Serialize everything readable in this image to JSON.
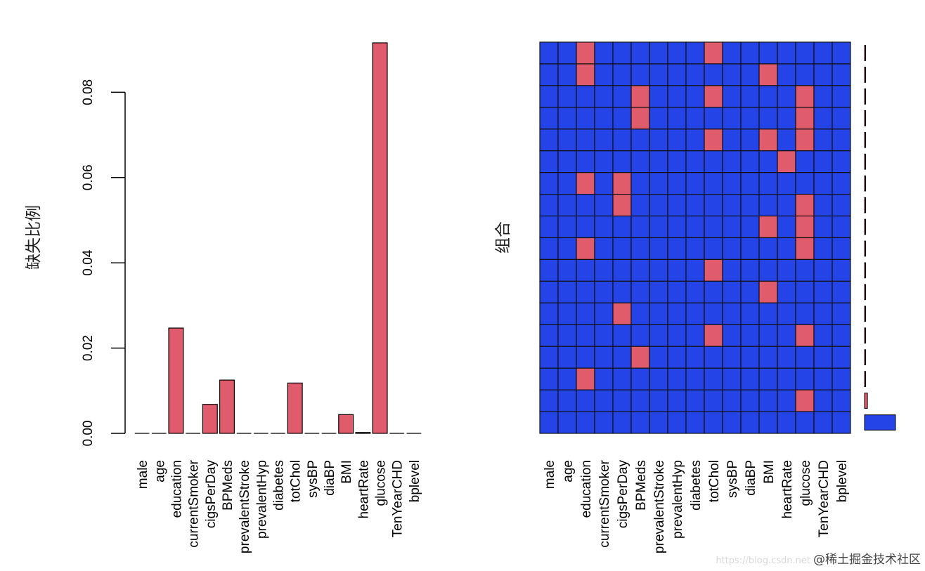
{
  "chart_data": [
    {
      "type": "bar",
      "ylabel": "缺失比例",
      "xlabel": "",
      "categories": [
        "male",
        "age",
        "education",
        "currentSmoker",
        "cigsPerDay",
        "BPMeds",
        "prevalentStroke",
        "prevalentHyp",
        "diabetes",
        "totChol",
        "sysBP",
        "diaBP",
        "BMI",
        "heartRate",
        "glucose",
        "TenYearCHD",
        "bplevel"
      ],
      "values": [
        0,
        0,
        0.0247,
        0,
        0.0068,
        0.0125,
        0,
        0,
        0,
        0.0118,
        0,
        0,
        0.0044,
        0.0002,
        0.0916,
        0,
        0
      ],
      "yticks": [
        "0.00",
        "0.02",
        "0.04",
        "0.06",
        "0.08"
      ],
      "ylim": [
        0,
        0.0916
      ],
      "bar_color": "#e05b6b",
      "legend": "none",
      "grid": false
    },
    {
      "type": "heatmap",
      "ylabel": "组合",
      "columns": [
        "male",
        "age",
        "education",
        "currentSmoker",
        "cigsPerDay",
        "BPMeds",
        "prevalentStroke",
        "prevalentHyp",
        "diabetes",
        "totChol",
        "sysBP",
        "diaBP",
        "BMI",
        "heartRate",
        "glucose",
        "TenYearCHD",
        "bplevel"
      ],
      "missing_pattern_rows": [
        [
          0,
          0,
          1,
          0,
          0,
          0,
          0,
          0,
          0,
          1,
          0,
          0,
          0,
          0,
          0,
          0,
          0
        ],
        [
          0,
          0,
          1,
          0,
          0,
          0,
          0,
          0,
          0,
          0,
          0,
          0,
          1,
          0,
          0,
          0,
          0
        ],
        [
          0,
          0,
          0,
          0,
          0,
          1,
          0,
          0,
          0,
          1,
          0,
          0,
          0,
          0,
          1,
          0,
          0
        ],
        [
          0,
          0,
          0,
          0,
          0,
          1,
          0,
          0,
          0,
          0,
          0,
          0,
          0,
          0,
          1,
          0,
          0
        ],
        [
          0,
          0,
          0,
          0,
          0,
          0,
          0,
          0,
          0,
          1,
          0,
          0,
          1,
          0,
          1,
          0,
          0
        ],
        [
          0,
          0,
          0,
          0,
          0,
          0,
          0,
          0,
          0,
          0,
          0,
          0,
          0,
          1,
          0,
          0,
          0
        ],
        [
          0,
          0,
          1,
          0,
          1,
          0,
          0,
          0,
          0,
          0,
          0,
          0,
          0,
          0,
          0,
          0,
          0
        ],
        [
          0,
          0,
          0,
          0,
          1,
          0,
          0,
          0,
          0,
          0,
          0,
          0,
          0,
          0,
          1,
          0,
          0
        ],
        [
          0,
          0,
          0,
          0,
          0,
          0,
          0,
          0,
          0,
          0,
          0,
          0,
          1,
          0,
          1,
          0,
          0
        ],
        [
          0,
          0,
          1,
          0,
          0,
          0,
          0,
          0,
          0,
          0,
          0,
          0,
          0,
          0,
          1,
          0,
          0
        ],
        [
          0,
          0,
          0,
          0,
          0,
          0,
          0,
          0,
          0,
          1,
          0,
          0,
          0,
          0,
          0,
          0,
          0
        ],
        [
          0,
          0,
          0,
          0,
          0,
          0,
          0,
          0,
          0,
          0,
          0,
          0,
          1,
          0,
          0,
          0,
          0
        ],
        [
          0,
          0,
          0,
          0,
          1,
          0,
          0,
          0,
          0,
          0,
          0,
          0,
          0,
          0,
          0,
          0,
          0
        ],
        [
          0,
          0,
          0,
          0,
          0,
          0,
          0,
          0,
          0,
          1,
          0,
          0,
          0,
          0,
          1,
          0,
          0
        ],
        [
          0,
          0,
          0,
          0,
          0,
          1,
          0,
          0,
          0,
          0,
          0,
          0,
          0,
          0,
          0,
          0,
          0
        ],
        [
          0,
          0,
          1,
          0,
          0,
          0,
          0,
          0,
          0,
          0,
          0,
          0,
          0,
          0,
          0,
          0,
          0
        ],
        [
          0,
          0,
          0,
          0,
          0,
          0,
          0,
          0,
          0,
          0,
          0,
          0,
          0,
          0,
          1,
          0,
          0
        ],
        [
          0,
          0,
          0,
          0,
          0,
          0,
          0,
          0,
          0,
          0,
          0,
          0,
          0,
          0,
          0,
          0,
          0
        ]
      ],
      "combination_frequency": [
        0.0003,
        0.0003,
        0.0003,
        0.0003,
        0.0003,
        0.0003,
        0.0003,
        0.0003,
        0.0003,
        0.0003,
        0.0003,
        0.0003,
        0.0003,
        0.0003,
        0.0005,
        0.0009,
        0.014,
        0.15
      ],
      "missing_color": "#e05b6b",
      "present_color": "#2544e8",
      "legend": "none",
      "grid": true
    }
  ],
  "watermark": {
    "url": "https://blog.csdn.net",
    "text": "@稀土掘金技术社区"
  }
}
